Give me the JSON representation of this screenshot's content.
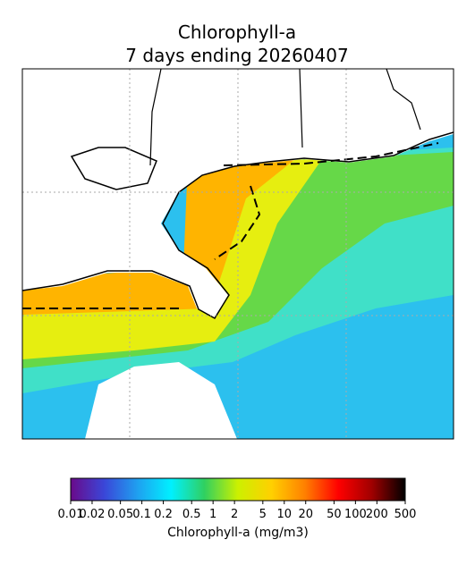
{
  "map": {
    "title_lines": [
      "Chlorophyll-a",
      "7 days ending 20260407"
    ],
    "colorbar": {
      "label": "Chlorophyll-a (mg/m3)",
      "log": true,
      "lim": [
        0.01,
        500
      ],
      "ticks": [
        0.01,
        0.02,
        0.05,
        0.1,
        0.2,
        0.5,
        1,
        2,
        5,
        10,
        20,
        50,
        100,
        200,
        500
      ],
      "colors": [
        "#6a0a8a",
        "#3a46d8",
        "#1fa0f0",
        "#00f0ff",
        "#30d060",
        "#ccf000",
        "#ffd000",
        "#ff8000",
        "#ff0000",
        "#a00000",
        "#000000"
      ]
    }
  }
}
